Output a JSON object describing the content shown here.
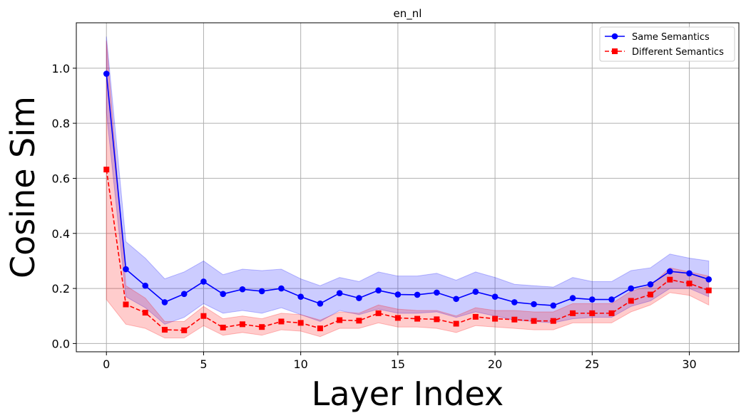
{
  "chart_data": {
    "type": "line",
    "title": "en_nl",
    "xlabel": "Layer Index",
    "ylabel": "Cosine Sim",
    "xlim": [
      -1.55,
      32.55
    ],
    "ylim": [
      -0.03,
      1.165
    ],
    "x_ticks": [
      0,
      5,
      10,
      15,
      20,
      25,
      30
    ],
    "y_ticks": [
      0.0,
      0.2,
      0.4,
      0.6,
      0.8,
      1.0
    ],
    "x_tick_labels": [
      "0",
      "5",
      "10",
      "15",
      "20",
      "25",
      "30"
    ],
    "y_tick_labels": [
      "0.0",
      "0.2",
      "0.4",
      "0.6",
      "0.8",
      "1.0"
    ],
    "grid": true,
    "legend_position": "top-right",
    "x": [
      0,
      1,
      2,
      3,
      4,
      5,
      6,
      7,
      8,
      9,
      10,
      11,
      12,
      13,
      14,
      15,
      16,
      17,
      18,
      19,
      20,
      21,
      22,
      23,
      24,
      25,
      26,
      27,
      28,
      29,
      30,
      31
    ],
    "series": [
      {
        "name": "Same Semantics",
        "color": "#0000ff",
        "line_style": "solid",
        "marker": "circle",
        "values": [
          0.98,
          0.27,
          0.21,
          0.15,
          0.18,
          0.225,
          0.18,
          0.197,
          0.19,
          0.2,
          0.17,
          0.145,
          0.183,
          0.165,
          0.193,
          0.178,
          0.177,
          0.185,
          0.162,
          0.188,
          0.17,
          0.15,
          0.143,
          0.138,
          0.165,
          0.16,
          0.16,
          0.2,
          0.215,
          0.262,
          0.255,
          0.233
        ],
        "band_upper": [
          1.115,
          0.37,
          0.31,
          0.235,
          0.26,
          0.3,
          0.25,
          0.27,
          0.265,
          0.27,
          0.235,
          0.21,
          0.24,
          0.225,
          0.26,
          0.245,
          0.245,
          0.255,
          0.23,
          0.26,
          0.24,
          0.215,
          0.21,
          0.205,
          0.24,
          0.225,
          0.225,
          0.265,
          0.275,
          0.325,
          0.31,
          0.3
        ],
        "band_lower": [
          0.84,
          0.17,
          0.13,
          0.07,
          0.095,
          0.145,
          0.11,
          0.12,
          0.11,
          0.13,
          0.105,
          0.08,
          0.12,
          0.105,
          0.125,
          0.11,
          0.11,
          0.115,
          0.095,
          0.115,
          0.1,
          0.085,
          0.08,
          0.075,
          0.09,
          0.095,
          0.095,
          0.135,
          0.155,
          0.2,
          0.2,
          0.17
        ]
      },
      {
        "name": "Different Semantics",
        "color": "#ff0000",
        "line_style": "dashed",
        "marker": "square",
        "values": [
          0.632,
          0.142,
          0.112,
          0.05,
          0.048,
          0.1,
          0.058,
          0.07,
          0.06,
          0.08,
          0.075,
          0.055,
          0.085,
          0.083,
          0.11,
          0.093,
          0.09,
          0.088,
          0.072,
          0.097,
          0.09,
          0.087,
          0.082,
          0.082,
          0.11,
          0.11,
          0.11,
          0.155,
          0.178,
          0.232,
          0.218,
          0.193
        ],
        "band_upper": [
          1.1,
          0.21,
          0.165,
          0.08,
          0.08,
          0.135,
          0.09,
          0.1,
          0.09,
          0.11,
          0.105,
          0.085,
          0.115,
          0.11,
          0.14,
          0.125,
          0.12,
          0.12,
          0.1,
          0.13,
          0.12,
          0.12,
          0.115,
          0.115,
          0.145,
          0.145,
          0.145,
          0.19,
          0.21,
          0.275,
          0.26,
          0.245
        ],
        "band_lower": [
          0.16,
          0.07,
          0.055,
          0.02,
          0.02,
          0.065,
          0.03,
          0.04,
          0.03,
          0.05,
          0.045,
          0.025,
          0.055,
          0.055,
          0.075,
          0.06,
          0.06,
          0.055,
          0.04,
          0.065,
          0.06,
          0.055,
          0.05,
          0.05,
          0.075,
          0.075,
          0.075,
          0.115,
          0.14,
          0.185,
          0.175,
          0.14
        ]
      }
    ]
  }
}
